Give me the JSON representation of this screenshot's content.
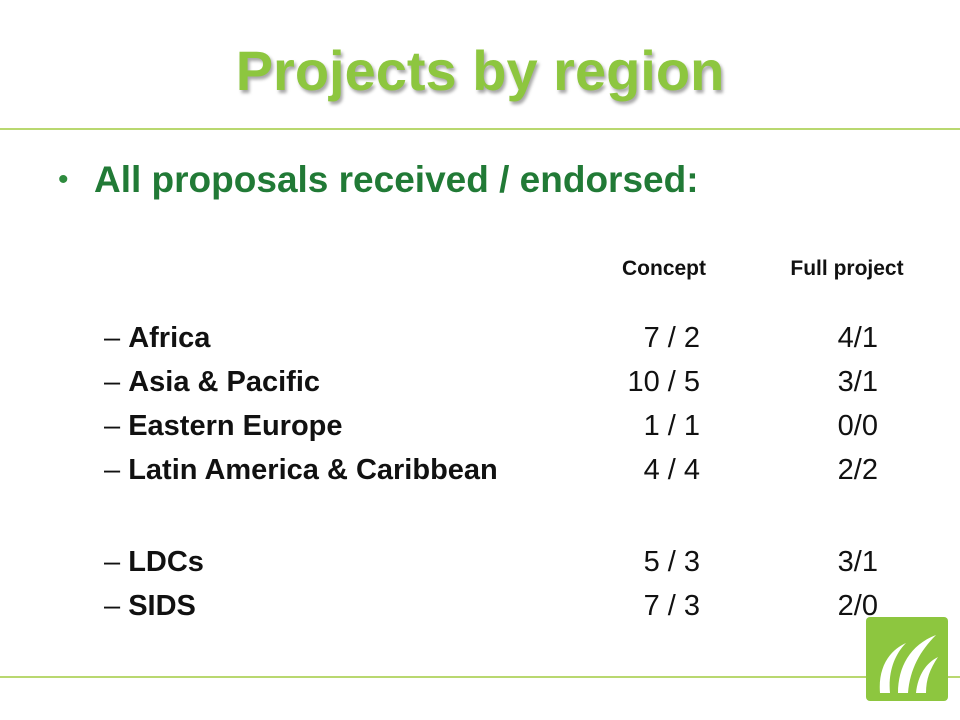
{
  "header": {
    "title": "Projects by region"
  },
  "bullet": "All proposals received / endorsed:",
  "table": {
    "columns": [
      "Concept",
      "Full project"
    ],
    "groups": [
      [
        [
          "Africa",
          "7 / 2",
          "4/1"
        ],
        [
          "Asia & Pacific",
          "10 / 5",
          "3/1"
        ],
        [
          "Eastern Europe",
          "1 / 1",
          "0/0"
        ],
        [
          "Latin America & Caribbean",
          "4 / 4",
          "2/2"
        ]
      ],
      [
        [
          "LDCs",
          "5 / 3",
          "3/1"
        ],
        [
          "SIDS",
          "7 / 3",
          "2/0"
        ]
      ]
    ]
  }
}
